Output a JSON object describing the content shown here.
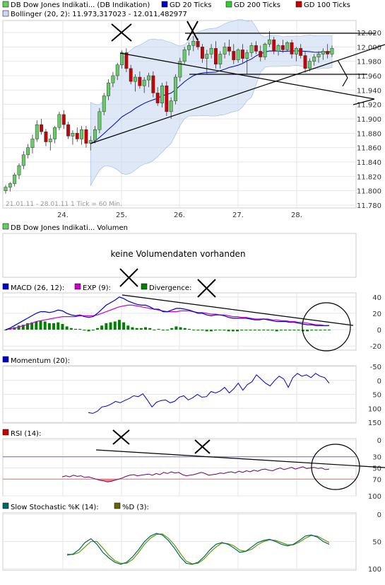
{
  "legend_main": [
    {
      "label": "DB Dow Jones Indikati... (DB Indikation)",
      "color": "#66cc66"
    },
    {
      "label": "GD 20 Ticks",
      "color": "#0000cc"
    },
    {
      "label": "GD 200 Ticks",
      "color": "#33cc33"
    },
    {
      "label": "GD 100 Ticks",
      "color": "#cc0000"
    }
  ],
  "bollinger_label": "Bollinger (20, 2): 11.973,317023 - 12.011,482977",
  "footer_info": "21.01.11 - 28.01.11  1 Tick = 60 Min.",
  "volume_label": "DB Dow Jones Indikati... Volumen",
  "volume_message": "keine Volumendaten vorhanden",
  "macd_legend": [
    {
      "label": "MACD (26, 12):",
      "color": "#0000cc"
    },
    {
      "label": "EXP (9):",
      "color": "#cc00cc"
    },
    {
      "label": "Divergence:",
      "color": "#008000"
    }
  ],
  "momentum_label": "Momentum (20):",
  "rsi_label": "RSI (14):",
  "stoch_legend": [
    {
      "label": "Slow Stochastic %K (14):",
      "color": "#006666"
    },
    {
      "label": "%D (3):",
      "color": "#666600"
    }
  ],
  "colors": {
    "candle_up": "#66cc66",
    "candle_down": "#cc0000",
    "band_fill": "#c8d9f0",
    "trend": "#000000"
  },
  "chart_data": [
    {
      "type": "candlestick",
      "x_ticks": [
        "24.",
        "25.",
        "26.",
        "27.",
        "28."
      ],
      "y_ticks": [
        "11.780",
        "11.800",
        "11.820",
        "11.840",
        "11.860",
        "11.880",
        "11.900",
        "11.920",
        "11.940",
        "11.960",
        "11.980",
        "12.000",
        "12.020"
      ],
      "ylim": [
        11780,
        12026
      ],
      "candles": [
        [
          11800,
          11808,
          11796,
          11805
        ],
        [
          11805,
          11812,
          11799,
          11810
        ],
        [
          11810,
          11825,
          11806,
          11822
        ],
        [
          11822,
          11838,
          11816,
          11835
        ],
        [
          11835,
          11855,
          11830,
          11850
        ],
        [
          11850,
          11865,
          11845,
          11860
        ],
        [
          11860,
          11878,
          11852,
          11872
        ],
        [
          11872,
          11898,
          11868,
          11892
        ],
        [
          11892,
          11900,
          11878,
          11882
        ],
        [
          11882,
          11886,
          11862,
          11868
        ],
        [
          11868,
          11878,
          11856,
          11872
        ],
        [
          11872,
          11890,
          11866,
          11888
        ],
        [
          11888,
          11910,
          11884,
          11906
        ],
        [
          11906,
          11912,
          11886,
          11892
        ],
        [
          11892,
          11896,
          11872,
          11876
        ],
        [
          11876,
          11884,
          11864,
          11880
        ],
        [
          11880,
          11888,
          11868,
          11872
        ],
        [
          11872,
          11890,
          11864,
          11885
        ],
        [
          11885,
          11890,
          11860,
          11866
        ],
        [
          11866,
          11876,
          11856,
          11870
        ],
        [
          11870,
          11890,
          11866,
          11885
        ],
        [
          11885,
          11915,
          11880,
          11910
        ],
        [
          11910,
          11936,
          11905,
          11932
        ],
        [
          11932,
          11955,
          11926,
          11950
        ],
        [
          11950,
          11965,
          11944,
          11960
        ],
        [
          11960,
          11978,
          11954,
          11975
        ],
        [
          11975,
          11995,
          11970,
          11992
        ],
        [
          11992,
          11998,
          11965,
          11970
        ],
        [
          11970,
          11975,
          11948,
          11952
        ],
        [
          11952,
          11962,
          11938,
          11958
        ],
        [
          11958,
          11966,
          11942,
          11946
        ],
        [
          11946,
          11958,
          11936,
          11954
        ],
        [
          11954,
          11964,
          11944,
          11960
        ],
        [
          11960,
          11966,
          11930,
          11936
        ],
        [
          11936,
          11944,
          11918,
          11922
        ],
        [
          11922,
          11950,
          11916,
          11946
        ],
        [
          11946,
          11952,
          11904,
          11910
        ],
        [
          11910,
          11930,
          11900,
          11925
        ],
        [
          11925,
          11962,
          11920,
          11958
        ],
        [
          11958,
          11985,
          11952,
          11980
        ],
        [
          11980,
          12000,
          11976,
          11996
        ],
        [
          11996,
          12006,
          11988,
          12002
        ],
        [
          12002,
          12015,
          11994,
          12008
        ],
        [
          12008,
          12012,
          11996,
          12000
        ],
        [
          12000,
          12004,
          11978,
          11984
        ],
        [
          11984,
          11996,
          11962,
          11990
        ],
        [
          11990,
          12004,
          11984,
          11998
        ],
        [
          11998,
          12008,
          11970,
          11976
        ],
        [
          11976,
          11994,
          11970,
          11990
        ],
        [
          11990,
          12006,
          11984,
          12000
        ],
        [
          12000,
          12010,
          11988,
          11994
        ],
        [
          11994,
          12004,
          11976,
          11982
        ],
        [
          11982,
          11998,
          11978,
          11996
        ],
        [
          11996,
          12004,
          11978,
          11984
        ],
        [
          11984,
          11996,
          11962,
          11992
        ],
        [
          11992,
          12006,
          11986,
          12002
        ],
        [
          12002,
          12008,
          11990,
          11994
        ],
        [
          11994,
          12002,
          11980,
          11986
        ],
        [
          11986,
          12006,
          11982,
          12004
        ],
        [
          12004,
          12022,
          12000,
          12010
        ],
        [
          12010,
          12014,
          11990,
          11994
        ],
        [
          11994,
          12004,
          11988,
          12002
        ],
        [
          12002,
          12010,
          11992,
          11996
        ],
        [
          11996,
          12008,
          11994,
          12006
        ],
        [
          12006,
          12010,
          11984,
          11990
        ],
        [
          11990,
          12000,
          11980,
          11998
        ],
        [
          11998,
          12004,
          11984,
          11988
        ],
        [
          11988,
          11994,
          11964,
          11970
        ],
        [
          11970,
          11984,
          11966,
          11980
        ],
        [
          11980,
          11990,
          11974,
          11986
        ],
        [
          11986,
          11994,
          11978,
          11990
        ],
        [
          11990,
          11998,
          11982,
          11994
        ],
        [
          11994,
          12004,
          11984,
          11990
        ],
        [
          11990,
          12002,
          11986,
          11998
        ]
      ]
    },
    {
      "type": "line",
      "name": "MACD",
      "y_ticks": [
        "40",
        "20",
        "0",
        "-20"
      ],
      "ylim": [
        -25,
        45
      ],
      "series": [
        {
          "name": "MACD",
          "values": [
            0,
            2,
            5,
            8,
            11,
            14,
            17,
            20,
            22,
            22,
            21,
            22,
            24,
            23,
            20,
            18,
            17,
            18,
            16,
            15,
            16,
            20,
            25,
            30,
            33,
            36,
            40,
            38,
            35,
            33,
            31,
            30,
            30,
            28,
            25,
            25,
            22,
            22,
            24,
            26,
            26,
            25,
            24,
            22,
            20,
            20,
            18,
            17,
            18,
            18,
            17,
            15,
            14,
            14,
            14,
            14,
            13,
            12,
            12,
            13,
            12,
            11,
            10,
            10,
            10,
            9,
            9,
            8,
            7,
            6,
            6,
            5,
            5,
            5,
            5
          ]
        },
        {
          "name": "EXP",
          "values": [
            0,
            1,
            2,
            3,
            5,
            6,
            8,
            10,
            11,
            12,
            13,
            14,
            15,
            16,
            16,
            16,
            16,
            17,
            17,
            17,
            17,
            18,
            20,
            22,
            24,
            26,
            28,
            29,
            30,
            30,
            29,
            28,
            27,
            26,
            25,
            24,
            23,
            22,
            22,
            22,
            23,
            23,
            23,
            22,
            21,
            21,
            20,
            19,
            19,
            18,
            18,
            17,
            16,
            16,
            15,
            15,
            14,
            13,
            13,
            13,
            13,
            12,
            12,
            11,
            11,
            10,
            10,
            9,
            9,
            8,
            7,
            6,
            6,
            5,
            5
          ]
        },
        {
          "name": "Divergence",
          "values": [
            0,
            1,
            3,
            5,
            6,
            8,
            9,
            10,
            11,
            10,
            8,
            8,
            9,
            7,
            4,
            2,
            1,
            1,
            -1,
            -2,
            -1,
            2,
            5,
            8,
            9,
            10,
            12,
            9,
            5,
            3,
            2,
            2,
            3,
            2,
            0,
            1,
            -1,
            0,
            2,
            4,
            3,
            2,
            1,
            0,
            -1,
            -1,
            -2,
            -2,
            -1,
            0,
            -1,
            -2,
            -2,
            -2,
            -1,
            -1,
            -1,
            -1,
            -1,
            0,
            -1,
            -1,
            -2,
            -1,
            -1,
            -1,
            -1,
            -1,
            -2,
            -2,
            -1,
            -1,
            -1,
            0,
            0
          ]
        }
      ]
    },
    {
      "type": "line",
      "name": "Momentum",
      "y_ticks": [
        "150",
        "100",
        "50",
        "0",
        "-50"
      ],
      "ylim": [
        -55,
        155
      ],
      "values": [
        115,
        118,
        110,
        95,
        92,
        85,
        75,
        80,
        72,
        65,
        55,
        58,
        48,
        70,
        95,
        78,
        72,
        70,
        80,
        75,
        60,
        55,
        70,
        62,
        50,
        60,
        58,
        40,
        45,
        38,
        25,
        45,
        30,
        10,
        35,
        15,
        5,
        -20,
        -5,
        10,
        20,
        0,
        -15,
        -5,
        25,
        -10,
        -25,
        -15,
        -20,
        -10,
        -25,
        -15,
        -10,
        10
      ]
    },
    {
      "type": "line",
      "name": "RSI",
      "y_ticks": [
        "100",
        "70",
        "50",
        "30",
        "0"
      ],
      "ylim": [
        0,
        100
      ],
      "values": [
        66,
        64,
        66,
        63,
        65,
        64,
        67,
        66,
        68,
        70,
        72,
        73,
        75,
        74,
        72,
        70,
        68,
        65,
        63,
        62,
        64,
        63,
        62,
        61,
        63,
        60,
        62,
        58,
        60,
        57,
        59,
        58,
        62,
        64,
        63,
        62,
        60,
        58,
        60,
        63,
        62,
        61,
        59,
        60,
        58,
        57,
        59,
        56,
        58,
        55,
        57,
        54,
        56,
        53,
        52,
        54,
        55,
        52,
        50,
        53,
        51,
        49,
        52,
        50,
        48,
        51,
        50,
        49,
        51,
        50,
        53,
        52
      ]
    },
    {
      "type": "line",
      "name": "Slow Stochastic",
      "y_ticks": [
        "100",
        "50",
        "0"
      ],
      "ylim": [
        0,
        100
      ],
      "series": [
        {
          "name": "%K",
          "values": [
            75,
            73,
            65,
            52,
            45,
            55,
            70,
            80,
            88,
            92,
            88,
            78,
            65,
            50,
            40,
            35,
            38,
            48,
            62,
            78,
            90,
            92,
            88,
            78,
            65,
            55,
            52,
            55,
            62,
            70,
            68,
            60,
            52,
            48,
            46,
            50,
            55,
            58,
            55,
            48,
            40,
            38,
            42,
            50,
            55
          ]
        },
        {
          "name": "%D",
          "values": [
            73,
            74,
            70,
            60,
            50,
            50,
            62,
            75,
            85,
            90,
            90,
            83,
            70,
            55,
            44,
            37,
            36,
            44,
            56,
            72,
            86,
            91,
            90,
            82,
            70,
            60,
            53,
            54,
            58,
            66,
            68,
            64,
            56,
            50,
            47,
            48,
            52,
            56,
            56,
            51,
            44,
            39,
            40,
            46,
            52
          ]
        }
      ]
    }
  ]
}
